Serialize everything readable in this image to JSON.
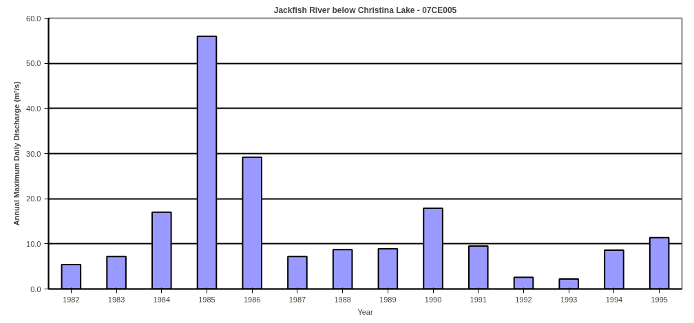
{
  "chart_data": {
    "type": "bar",
    "title": "Jackfish River below Christina Lake - 07CE005",
    "xlabel": "Year",
    "ylabel": "Annual Maximum Daily Discharge (m³/s)",
    "categories": [
      "1982",
      "1983",
      "1984",
      "1985",
      "1986",
      "1987",
      "1988",
      "1989",
      "1990",
      "1991",
      "1992",
      "1993",
      "1994",
      "1995"
    ],
    "values": [
      5.4,
      7.2,
      17.0,
      56.0,
      29.2,
      7.2,
      8.7,
      8.9,
      17.9,
      9.5,
      2.6,
      2.2,
      8.6,
      11.4
    ],
    "color": "#9999ff",
    "ylim": [
      0,
      60
    ],
    "yticks": [
      {
        "value": 0,
        "label": "0.0"
      },
      {
        "value": 10,
        "label": "10.0"
      },
      {
        "value": 20,
        "label": "20.0"
      },
      {
        "value": 30,
        "label": "30.0"
      },
      {
        "value": 40,
        "label": "40.0"
      },
      {
        "value": 50,
        "label": "50.0"
      },
      {
        "value": 60,
        "label": "60.0"
      }
    ],
    "grid": "y"
  }
}
